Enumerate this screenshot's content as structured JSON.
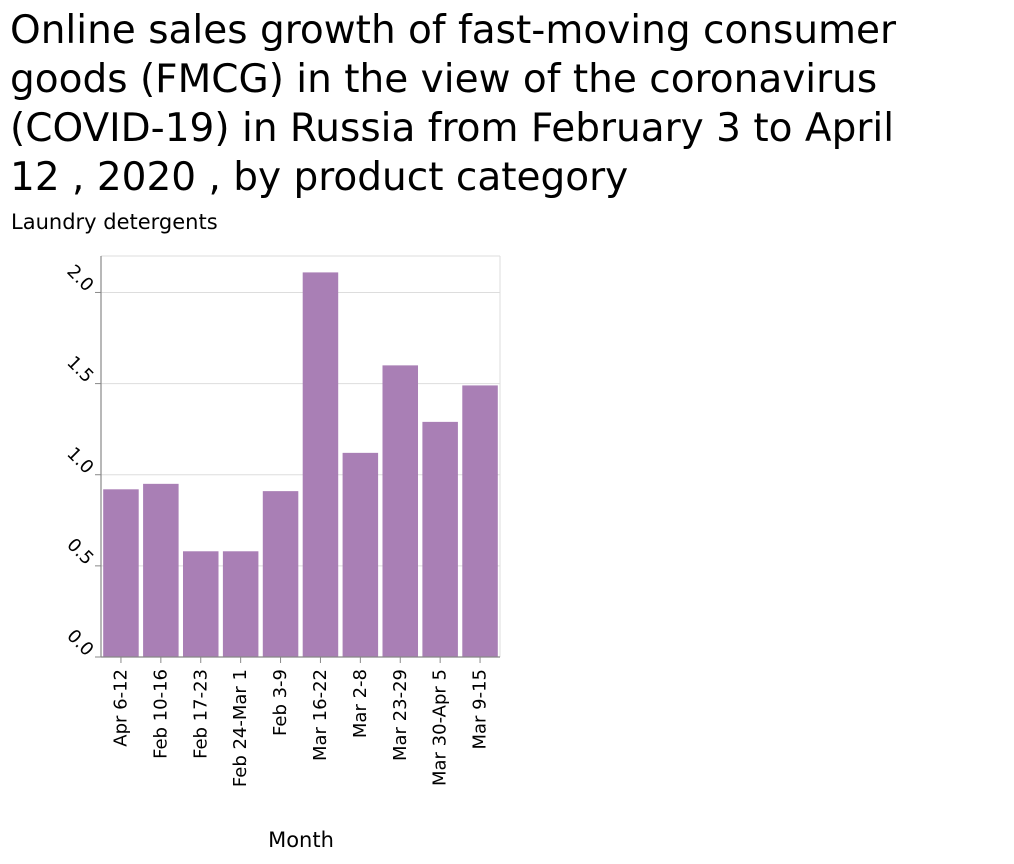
{
  "chart_data": {
    "type": "bar",
    "title": "Online sales growth of fast-moving consumer goods (FMCG) in the view of the coronavirus (COVID-19) in Russia from February 3 to April 12 , 2020 , by product category",
    "title_lines": [
      "Online sales growth of fast-moving consumer",
      "goods (FMCG) in the view of the coronavirus",
      "(COVID-19) in Russia from February 3 to April",
      "12 , 2020 , by product category"
    ],
    "ylabel": "Laundry detergents",
    "xlabel": "Month",
    "categories": [
      "Apr 6-12",
      "Feb 10-16",
      "Feb 17-23",
      "Feb 24-Mar 1",
      "Feb 3-9",
      "Mar 16-22",
      "Mar 2-8",
      "Mar 23-29",
      "Mar 30-Apr 5",
      "Mar 9-15"
    ],
    "values": [
      0.92,
      0.95,
      0.58,
      0.58,
      0.91,
      2.11,
      1.12,
      1.6,
      1.29,
      1.49
    ],
    "ylim": [
      0,
      2.2
    ],
    "yticks": [
      0.0,
      0.5,
      1.0,
      1.5,
      2.0
    ],
    "ytick_labels": [
      "0.0",
      "0.5",
      "1.0",
      "1.5",
      "2.0"
    ],
    "grid": true,
    "bar_color": "#a97fb5",
    "grid_color": "#dddddd",
    "axis_color": "#888888"
  }
}
